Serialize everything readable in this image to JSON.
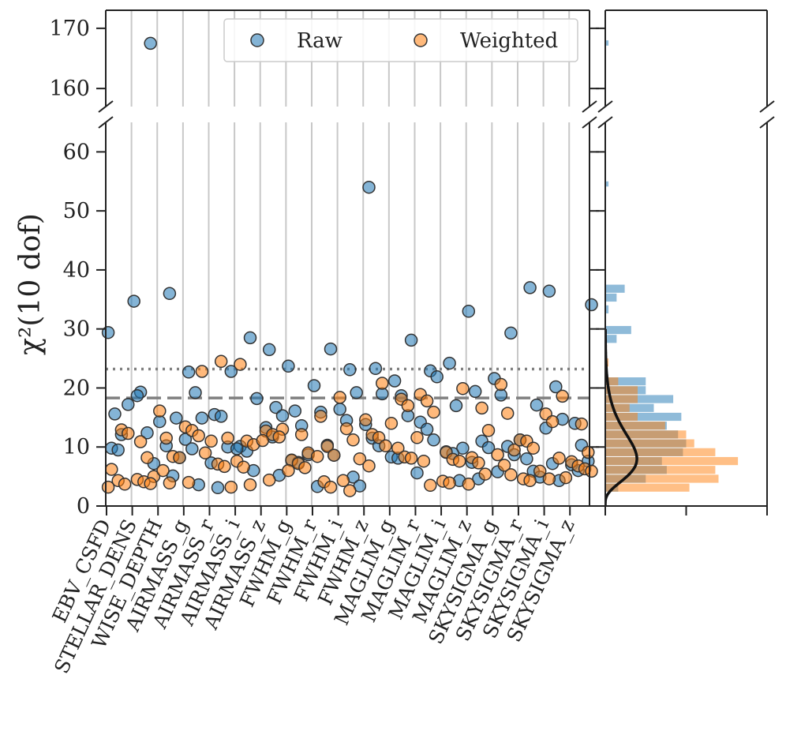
{
  "chart_data": {
    "type": "scatter",
    "ylabel": "χ²(10 dof)",
    "categories": [
      "EBV_CSFD",
      "STELLAR_DENS",
      "WISE_DEPTH",
      "AIRMASS_g",
      "AIRMASS_r",
      "AIRMASS_i",
      "AIRMASS_z",
      "FWHM_g",
      "FWHM_r",
      "FWHM_i",
      "FWHM_z",
      "MAGLIM_g",
      "MAGLIM_r",
      "MAGLIM_i",
      "MAGLIM_z",
      "SKYSIGMA_g",
      "SKYSIGMA_r",
      "SKYSIGMA_i",
      "SKYSIGMA_z"
    ],
    "ylim_upper": [
      157,
      173
    ],
    "ylim_lower": [
      0,
      65
    ],
    "yticks_upper": [
      160,
      170
    ],
    "yticks_lower": [
      0,
      10,
      20,
      30,
      40,
      50,
      60
    ],
    "reference_lines": [
      {
        "style": "dotted",
        "y": 23.2
      },
      {
        "style": "dashed",
        "y": 18.3
      }
    ],
    "legend": {
      "position": "top-right",
      "entries": [
        "Raw",
        "Weighted"
      ]
    },
    "colors": {
      "raw": "#1f77b4",
      "weighted": "#ff7f0e",
      "curve": "#111111",
      "refline": "#808080",
      "grid": "#c8c8c8"
    },
    "series": [
      {
        "name": "Raw",
        "points": [
          [
            0,
            29.4
          ],
          [
            0,
            15.6
          ],
          [
            0,
            12.1
          ],
          [
            0,
            17.2
          ],
          [
            0,
            9.8
          ],
          [
            0,
            9.5
          ],
          [
            1,
            167.5
          ],
          [
            1,
            34.7
          ],
          [
            1,
            19.3
          ],
          [
            1,
            12.4
          ],
          [
            1,
            7.2
          ],
          [
            1,
            18.7
          ],
          [
            2,
            36.0
          ],
          [
            2,
            14.9
          ],
          [
            2,
            14.3
          ],
          [
            2,
            10.2
          ],
          [
            2,
            5.1
          ],
          [
            2,
            8.2
          ],
          [
            3,
            22.7
          ],
          [
            3,
            19.2
          ],
          [
            3,
            14.9
          ],
          [
            3,
            11.3
          ],
          [
            3,
            9.7
          ],
          [
            3,
            3.6
          ],
          [
            4,
            22.8
          ],
          [
            4,
            15.5
          ],
          [
            4,
            15.2
          ],
          [
            4,
            10.0
          ],
          [
            4,
            7.3
          ],
          [
            4,
            3.1
          ],
          [
            5,
            28.5
          ],
          [
            5,
            18.2
          ],
          [
            5,
            10.1
          ],
          [
            5,
            9.3
          ],
          [
            5,
            6.0
          ],
          [
            5,
            9.7
          ],
          [
            6,
            26.5
          ],
          [
            6,
            16.7
          ],
          [
            6,
            15.3
          ],
          [
            6,
            13.3
          ],
          [
            6,
            11.7
          ],
          [
            6,
            5.2
          ],
          [
            7,
            23.7
          ],
          [
            7,
            16.1
          ],
          [
            7,
            13.6
          ],
          [
            7,
            8.7
          ],
          [
            7,
            7.7
          ],
          [
            7,
            7.4
          ],
          [
            8,
            26.6
          ],
          [
            8,
            20.4
          ],
          [
            8,
            15.9
          ],
          [
            8,
            10.3
          ],
          [
            8,
            8.6
          ],
          [
            8,
            3.3
          ],
          [
            9,
            23.1
          ],
          [
            9,
            19.2
          ],
          [
            9,
            16.4
          ],
          [
            9,
            14.5
          ],
          [
            9,
            4.9
          ],
          [
            9,
            3.4
          ],
          [
            10,
            54.0
          ],
          [
            10,
            23.3
          ],
          [
            10,
            19.0
          ],
          [
            10,
            13.8
          ],
          [
            10,
            11.5
          ],
          [
            10,
            10.2
          ],
          [
            11,
            28.1
          ],
          [
            11,
            21.2
          ],
          [
            11,
            18.7
          ],
          [
            11,
            15.3
          ],
          [
            11,
            8.3
          ],
          [
            11,
            8.1
          ],
          [
            12,
            22.9
          ],
          [
            12,
            21.9
          ],
          [
            12,
            14.2
          ],
          [
            12,
            13.0
          ],
          [
            12,
            11.2
          ],
          [
            12,
            5.6
          ],
          [
            13,
            24.2
          ],
          [
            13,
            17.0
          ],
          [
            13,
            9.8
          ],
          [
            13,
            9.2
          ],
          [
            13,
            8.9
          ],
          [
            13,
            4.3
          ],
          [
            14,
            33.0
          ],
          [
            14,
            19.4
          ],
          [
            14,
            11.0
          ],
          [
            14,
            9.9
          ],
          [
            14,
            7.4
          ],
          [
            14,
            4.6
          ],
          [
            15,
            29.3
          ],
          [
            15,
            21.6
          ],
          [
            15,
            18.8
          ],
          [
            15,
            10.1
          ],
          [
            15,
            8.7
          ],
          [
            15,
            5.8
          ],
          [
            16,
            37.0
          ],
          [
            16,
            17.1
          ],
          [
            16,
            11.2
          ],
          [
            16,
            8.0
          ],
          [
            16,
            5.9
          ],
          [
            16,
            4.9
          ],
          [
            17,
            36.4
          ],
          [
            17,
            20.2
          ],
          [
            17,
            14.7
          ],
          [
            17,
            13.2
          ],
          [
            17,
            7.2
          ],
          [
            17,
            4.3
          ],
          [
            18,
            34.1
          ],
          [
            18,
            14.0
          ],
          [
            18,
            10.3
          ],
          [
            18,
            7.6
          ],
          [
            18,
            7.0
          ],
          [
            18,
            6.0
          ]
        ]
      },
      {
        "name": "Weighted",
        "points": [
          [
            0,
            12.9
          ],
          [
            0,
            12.3
          ],
          [
            0,
            6.2
          ],
          [
            0,
            4.3
          ],
          [
            0,
            3.7
          ],
          [
            0,
            3.2
          ],
          [
            1,
            10.9
          ],
          [
            1,
            8.2
          ],
          [
            1,
            5.0
          ],
          [
            1,
            4.5
          ],
          [
            1,
            4.1
          ],
          [
            1,
            3.8
          ],
          [
            2,
            16.1
          ],
          [
            2,
            11.5
          ],
          [
            2,
            8.4
          ],
          [
            2,
            8.2
          ],
          [
            2,
            6.0
          ],
          [
            2,
            3.9
          ],
          [
            3,
            22.8
          ],
          [
            3,
            13.4
          ],
          [
            3,
            12.8
          ],
          [
            3,
            11.9
          ],
          [
            3,
            9.0
          ],
          [
            3,
            4.0
          ],
          [
            4,
            24.5
          ],
          [
            4,
            11.5
          ],
          [
            4,
            11.0
          ],
          [
            4,
            7.1
          ],
          [
            4,
            6.7
          ],
          [
            4,
            3.2
          ],
          [
            5,
            24.0
          ],
          [
            5,
            11.0
          ],
          [
            5,
            10.4
          ],
          [
            5,
            7.6
          ],
          [
            5,
            6.6
          ],
          [
            5,
            3.6
          ],
          [
            6,
            13.0
          ],
          [
            6,
            12.7
          ],
          [
            6,
            12.1
          ],
          [
            6,
            11.7
          ],
          [
            6,
            11.1
          ],
          [
            6,
            4.4
          ],
          [
            7,
            12.1
          ],
          [
            7,
            9.0
          ],
          [
            7,
            7.8
          ],
          [
            7,
            7.2
          ],
          [
            7,
            6.5
          ],
          [
            7,
            6.0
          ],
          [
            8,
            15.2
          ],
          [
            8,
            10.1
          ],
          [
            8,
            8.6
          ],
          [
            8,
            8.4
          ],
          [
            8,
            4.1
          ],
          [
            8,
            3.2
          ],
          [
            9,
            18.4
          ],
          [
            9,
            13.1
          ],
          [
            9,
            11.2
          ],
          [
            9,
            8.0
          ],
          [
            9,
            4.3
          ],
          [
            9,
            2.6
          ],
          [
            10,
            20.8
          ],
          [
            10,
            14.6
          ],
          [
            10,
            12.1
          ],
          [
            10,
            11.6
          ],
          [
            10,
            10.2
          ],
          [
            10,
            6.8
          ],
          [
            11,
            18.1
          ],
          [
            11,
            17.0
          ],
          [
            11,
            14.0
          ],
          [
            11,
            9.8
          ],
          [
            11,
            8.3
          ],
          [
            11,
            8.1
          ],
          [
            12,
            18.9
          ],
          [
            12,
            17.8
          ],
          [
            12,
            15.9
          ],
          [
            12,
            11.6
          ],
          [
            12,
            7.6
          ],
          [
            12,
            3.5
          ],
          [
            13,
            19.9
          ],
          [
            13,
            9.1
          ],
          [
            13,
            7.9
          ],
          [
            13,
            7.6
          ],
          [
            13,
            4.2
          ],
          [
            13,
            3.9
          ],
          [
            14,
            16.6
          ],
          [
            14,
            12.8
          ],
          [
            14,
            8.2
          ],
          [
            14,
            7.3
          ],
          [
            14,
            5.4
          ],
          [
            14,
            3.7
          ],
          [
            15,
            20.6
          ],
          [
            15,
            15.7
          ],
          [
            15,
            9.5
          ],
          [
            15,
            8.7
          ],
          [
            15,
            6.9
          ],
          [
            15,
            5.3
          ],
          [
            16,
            11.2
          ],
          [
            16,
            11.0
          ],
          [
            16,
            9.8
          ],
          [
            16,
            5.9
          ],
          [
            16,
            4.6
          ],
          [
            16,
            4.3
          ],
          [
            17,
            18.6
          ],
          [
            17,
            15.6
          ],
          [
            17,
            14.3
          ],
          [
            17,
            8.1
          ],
          [
            17,
            4.8
          ],
          [
            17,
            4.6
          ],
          [
            18,
            13.9
          ],
          [
            18,
            9.1
          ],
          [
            18,
            7.5
          ],
          [
            18,
            6.8
          ],
          [
            18,
            6.3
          ],
          [
            18,
            5.9
          ]
        ]
      }
    ],
    "side_histogram": {
      "type": "bar",
      "orientation": "horizontal",
      "xlim": [
        0,
        0.1
      ],
      "xticks": [
        0,
        0.05,
        0.1
      ],
      "series": [
        {
          "name": "Raw",
          "bins": [
            [
              167,
              168,
              0.002
            ],
            [
              54,
              55,
              0.002
            ],
            [
              36,
              37.5,
              0.012
            ],
            [
              34.5,
              36,
              0.007
            ],
            [
              32.5,
              34,
              0.002
            ],
            [
              29,
              30.5,
              0.016
            ],
            [
              27.5,
              29,
              0.007
            ],
            [
              20.3,
              21.8,
              0.025
            ],
            [
              18.8,
              20.3,
              0.025
            ],
            [
              17.3,
              18.8,
              0.042
            ],
            [
              15.8,
              17.3,
              0.03
            ],
            [
              14.3,
              15.8,
              0.047
            ],
            [
              12.8,
              14.3,
              0.038
            ],
            [
              11.3,
              12.8,
              0.045
            ],
            [
              9.8,
              11.3,
              0.05
            ],
            [
              8.3,
              9.8,
              0.048
            ],
            [
              6.8,
              8.3,
              0.035
            ],
            [
              5.3,
              6.8,
              0.038
            ],
            [
              3.8,
              5.3,
              0.025
            ],
            [
              2.3,
              3.8,
              0.008
            ]
          ]
        },
        {
          "name": "Weighted",
          "bins": [
            [
              23.5,
              25,
              0.002
            ],
            [
              20.3,
              21.8,
              0.008
            ],
            [
              18.8,
              20.3,
              0.02
            ],
            [
              17.3,
              18.8,
              0.02
            ],
            [
              15.8,
              17.3,
              0.015
            ],
            [
              14.3,
              15.8,
              0.02
            ],
            [
              12.8,
              14.3,
              0.037
            ],
            [
              11.3,
              12.8,
              0.05
            ],
            [
              9.8,
              11.3,
              0.055
            ],
            [
              8.3,
              9.8,
              0.068
            ],
            [
              6.8,
              8.3,
              0.082
            ],
            [
              5.3,
              6.8,
              0.068
            ],
            [
              3.8,
              5.3,
              0.07
            ],
            [
              2.3,
              3.8,
              0.052
            ]
          ]
        }
      ],
      "curve": "chi-squared pdf, 10 dof"
    }
  }
}
